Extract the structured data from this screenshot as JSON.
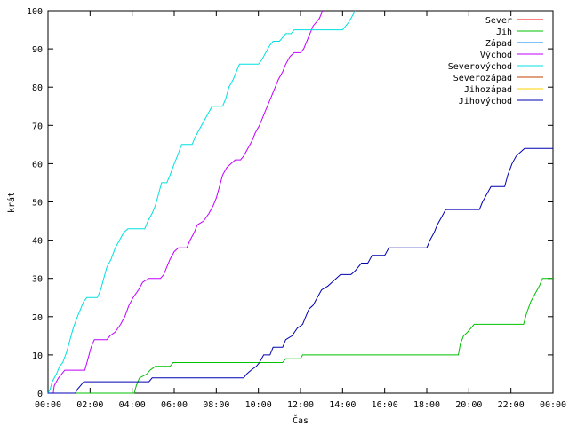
{
  "chart_data": {
    "type": "line",
    "title": "",
    "xlabel": "Čas",
    "ylabel": "krát",
    "xlim": [
      0,
      24
    ],
    "ylim": [
      0,
      100
    ],
    "x_tick_labels": [
      "00:00",
      "02:00",
      "04:00",
      "06:00",
      "08:00",
      "10:00",
      "12:00",
      "14:00",
      "16:00",
      "18:00",
      "20:00",
      "22:00",
      "00:00"
    ],
    "x_tick_values": [
      0,
      2,
      4,
      6,
      8,
      10,
      12,
      14,
      16,
      18,
      20,
      22,
      24
    ],
    "y_ticks": [
      0,
      10,
      20,
      30,
      40,
      50,
      60,
      70,
      80,
      90,
      100
    ],
    "grid": false,
    "legend_position": "top-right",
    "series": [
      {
        "name": "Sever",
        "color": "#ff0000",
        "points": []
      },
      {
        "name": "Jih",
        "color": "#00c000",
        "points": [
          [
            0,
            0
          ],
          [
            4.1,
            0
          ],
          [
            4.2,
            2
          ],
          [
            4.35,
            4
          ],
          [
            4.7,
            5
          ],
          [
            4.85,
            6
          ],
          [
            5.1,
            7
          ],
          [
            5.8,
            7
          ],
          [
            5.95,
            8
          ],
          [
            11.15,
            8
          ],
          [
            11.3,
            9
          ],
          [
            12.0,
            9
          ],
          [
            12.1,
            10
          ],
          [
            19.5,
            10
          ],
          [
            19.6,
            13
          ],
          [
            19.75,
            15
          ],
          [
            19.95,
            16
          ],
          [
            20.1,
            17
          ],
          [
            20.25,
            18
          ],
          [
            22.6,
            18
          ],
          [
            22.75,
            21
          ],
          [
            22.95,
            24
          ],
          [
            23.15,
            26
          ],
          [
            23.35,
            28
          ],
          [
            23.5,
            30
          ],
          [
            24,
            30
          ]
        ]
      },
      {
        "name": "Západ",
        "color": "#0080ff",
        "points": []
      },
      {
        "name": "Východ",
        "color": "#c000ff",
        "points": [
          [
            0,
            0
          ],
          [
            0.25,
            0
          ],
          [
            0.3,
            2
          ],
          [
            0.5,
            4
          ],
          [
            0.8,
            6
          ],
          [
            1.75,
            6
          ],
          [
            1.85,
            8
          ],
          [
            1.95,
            10
          ],
          [
            2.05,
            12
          ],
          [
            2.2,
            14
          ],
          [
            2.8,
            14
          ],
          [
            2.95,
            15
          ],
          [
            3.2,
            16
          ],
          [
            3.45,
            18
          ],
          [
            3.65,
            20
          ],
          [
            3.85,
            23
          ],
          [
            4.05,
            25
          ],
          [
            4.3,
            27
          ],
          [
            4.5,
            29
          ],
          [
            4.8,
            30
          ],
          [
            5.35,
            30
          ],
          [
            5.5,
            31
          ],
          [
            5.65,
            33
          ],
          [
            5.8,
            35
          ],
          [
            6.0,
            37
          ],
          [
            6.2,
            38
          ],
          [
            6.6,
            38
          ],
          [
            6.75,
            40
          ],
          [
            6.95,
            42
          ],
          [
            7.1,
            44
          ],
          [
            7.4,
            45
          ],
          [
            7.65,
            47
          ],
          [
            7.85,
            49
          ],
          [
            8.0,
            51
          ],
          [
            8.15,
            54
          ],
          [
            8.3,
            57
          ],
          [
            8.5,
            59
          ],
          [
            8.7,
            60
          ],
          [
            8.9,
            61
          ],
          [
            9.15,
            61
          ],
          [
            9.3,
            62
          ],
          [
            9.5,
            64
          ],
          [
            9.7,
            66
          ],
          [
            9.85,
            68
          ],
          [
            10.05,
            70
          ],
          [
            10.2,
            72
          ],
          [
            10.35,
            74
          ],
          [
            10.5,
            76
          ],
          [
            10.65,
            78
          ],
          [
            10.8,
            80
          ],
          [
            10.95,
            82
          ],
          [
            11.15,
            84
          ],
          [
            11.3,
            86
          ],
          [
            11.5,
            88
          ],
          [
            11.7,
            89
          ],
          [
            12.0,
            89
          ],
          [
            12.15,
            90
          ],
          [
            12.3,
            92
          ],
          [
            12.45,
            94
          ],
          [
            12.6,
            96
          ],
          [
            12.75,
            97
          ],
          [
            12.9,
            98
          ],
          [
            13.05,
            100
          ]
        ]
      },
      {
        "name": "Severovýchod",
        "color": "#00e0e0",
        "points": [
          [
            0,
            0
          ],
          [
            0.1,
            1
          ],
          [
            0.2,
            3
          ],
          [
            0.4,
            5
          ],
          [
            0.55,
            7
          ],
          [
            0.7,
            8
          ],
          [
            0.9,
            11
          ],
          [
            1.05,
            14
          ],
          [
            1.2,
            17
          ],
          [
            1.4,
            20
          ],
          [
            1.55,
            22
          ],
          [
            1.7,
            24
          ],
          [
            1.85,
            25
          ],
          [
            2.35,
            25
          ],
          [
            2.5,
            27
          ],
          [
            2.65,
            30
          ],
          [
            2.8,
            33
          ],
          [
            3.0,
            35
          ],
          [
            3.2,
            38
          ],
          [
            3.4,
            40
          ],
          [
            3.6,
            42
          ],
          [
            3.8,
            43
          ],
          [
            4.6,
            43
          ],
          [
            4.75,
            45
          ],
          [
            4.95,
            47
          ],
          [
            5.1,
            49
          ],
          [
            5.25,
            52
          ],
          [
            5.4,
            55
          ],
          [
            5.65,
            55
          ],
          [
            5.8,
            57
          ],
          [
            6.0,
            60
          ],
          [
            6.15,
            62
          ],
          [
            6.35,
            65
          ],
          [
            6.85,
            65
          ],
          [
            7.0,
            67
          ],
          [
            7.2,
            69
          ],
          [
            7.4,
            71
          ],
          [
            7.6,
            73
          ],
          [
            7.8,
            75
          ],
          [
            8.3,
            75
          ],
          [
            8.45,
            77
          ],
          [
            8.6,
            80
          ],
          [
            8.8,
            82
          ],
          [
            8.95,
            84
          ],
          [
            9.1,
            86
          ],
          [
            10.0,
            86
          ],
          [
            10.15,
            87
          ],
          [
            10.35,
            89
          ],
          [
            10.55,
            91
          ],
          [
            10.7,
            92
          ],
          [
            11.0,
            92
          ],
          [
            11.15,
            93
          ],
          [
            11.3,
            94
          ],
          [
            11.55,
            94
          ],
          [
            11.7,
            95
          ],
          [
            14.0,
            95
          ],
          [
            14.15,
            96
          ],
          [
            14.3,
            97
          ],
          [
            14.5,
            99
          ],
          [
            14.6,
            100
          ]
        ]
      },
      {
        "name": "Severozápad",
        "color": "#c04000",
        "points": []
      },
      {
        "name": "Jihozápad",
        "color": "#ffd000",
        "points": []
      },
      {
        "name": "Jihovýchod",
        "color": "#0000b0",
        "points": [
          [
            0,
            0
          ],
          [
            1.3,
            0
          ],
          [
            1.4,
            1
          ],
          [
            1.55,
            2
          ],
          [
            1.7,
            3
          ],
          [
            4.8,
            3
          ],
          [
            4.95,
            4
          ],
          [
            9.3,
            4
          ],
          [
            9.45,
            5
          ],
          [
            9.65,
            6
          ],
          [
            9.9,
            7
          ],
          [
            10.05,
            8
          ],
          [
            10.25,
            10
          ],
          [
            10.55,
            10
          ],
          [
            10.7,
            12
          ],
          [
            11.15,
            12
          ],
          [
            11.3,
            14
          ],
          [
            11.6,
            15
          ],
          [
            11.85,
            17
          ],
          [
            12.1,
            18
          ],
          [
            12.25,
            20
          ],
          [
            12.4,
            22
          ],
          [
            12.6,
            23
          ],
          [
            12.8,
            25
          ],
          [
            13.0,
            27
          ],
          [
            13.3,
            28
          ],
          [
            13.5,
            29
          ],
          [
            13.7,
            30
          ],
          [
            13.9,
            31
          ],
          [
            14.4,
            31
          ],
          [
            14.6,
            32
          ],
          [
            14.9,
            34
          ],
          [
            15.2,
            34
          ],
          [
            15.4,
            36
          ],
          [
            16.0,
            36
          ],
          [
            16.2,
            38
          ],
          [
            18.0,
            38
          ],
          [
            18.15,
            40
          ],
          [
            18.35,
            42
          ],
          [
            18.5,
            44
          ],
          [
            18.7,
            46
          ],
          [
            18.9,
            48
          ],
          [
            20.5,
            48
          ],
          [
            20.65,
            50
          ],
          [
            20.85,
            52
          ],
          [
            21.05,
            54
          ],
          [
            21.7,
            54
          ],
          [
            21.85,
            57
          ],
          [
            22.05,
            60
          ],
          [
            22.25,
            62
          ],
          [
            22.45,
            63
          ],
          [
            22.65,
            64
          ],
          [
            24,
            64
          ]
        ]
      }
    ]
  }
}
